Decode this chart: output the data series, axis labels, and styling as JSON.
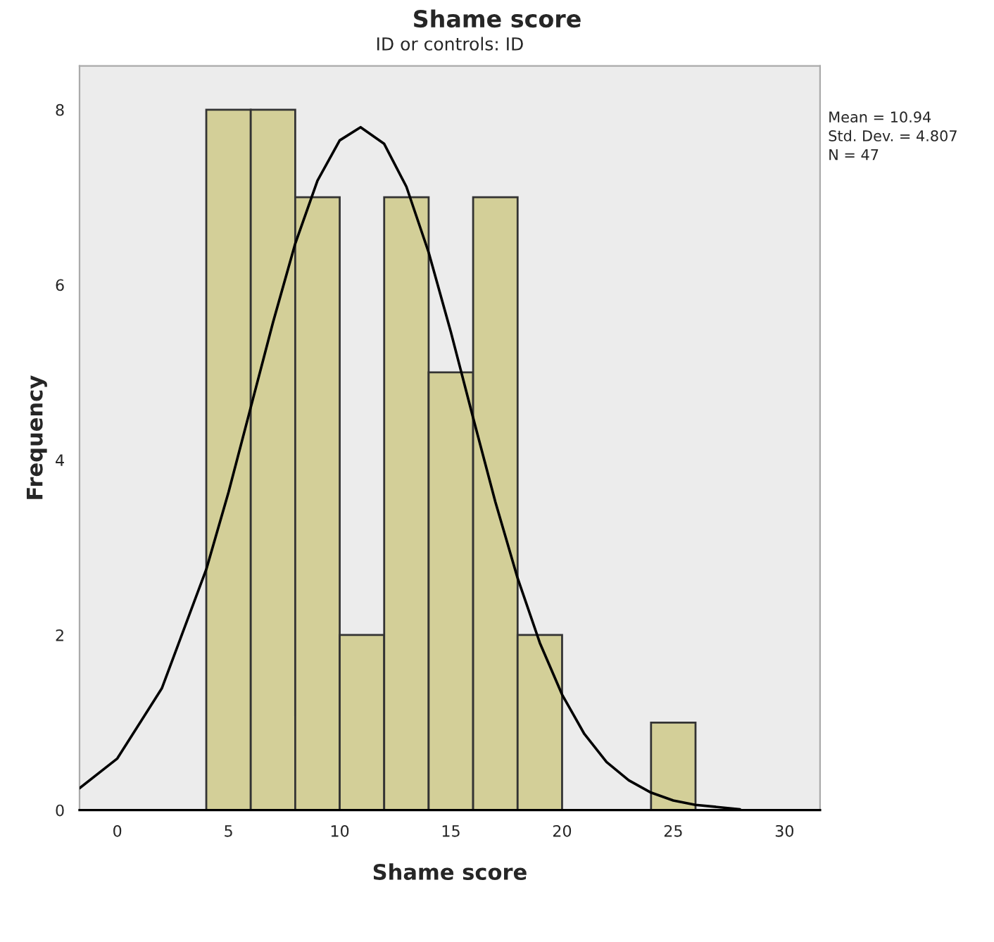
{
  "chart_data": {
    "type": "histogram",
    "title": "Shame score",
    "subtitle": "ID or controls: ID",
    "xlabel": "Shame score",
    "ylabel": "Frequency",
    "bins": [
      4,
      6,
      8,
      10,
      12,
      14,
      16,
      18,
      20,
      22,
      24,
      26
    ],
    "values": [
      8,
      8,
      7,
      2,
      7,
      5,
      7,
      2,
      0,
      0,
      1
    ],
    "color": "#d3cf98",
    "series": [
      {
        "type": "line",
        "color": "#000000",
        "x": [
          -1.7,
          0,
          2,
          4,
          5,
          6,
          7,
          8,
          9,
          10,
          10.94,
          12,
          13,
          14,
          15,
          16,
          17,
          18,
          19,
          20,
          21,
          22,
          23,
          24,
          25,
          26,
          28
        ],
        "values": [
          0.25,
          0.59,
          1.39,
          2.75,
          3.63,
          4.6,
          5.57,
          6.47,
          7.19,
          7.65,
          7.8,
          7.61,
          7.12,
          6.37,
          5.46,
          4.48,
          3.52,
          2.65,
          1.91,
          1.32,
          0.87,
          0.55,
          0.34,
          0.2,
          0.11,
          0.06,
          0.01
        ]
      }
    ],
    "xlim": [
      -1.7,
      31.6
    ],
    "xticks": [
      0,
      5,
      10,
      15,
      20,
      25,
      30
    ],
    "ylim": [
      0,
      8.5
    ],
    "yticks": [
      0,
      2,
      4,
      6,
      8
    ],
    "grid": false,
    "legend": false,
    "annotations": [
      "Mean = 10.94",
      "Std. Dev. = 4.807",
      "N = 47"
    ]
  }
}
